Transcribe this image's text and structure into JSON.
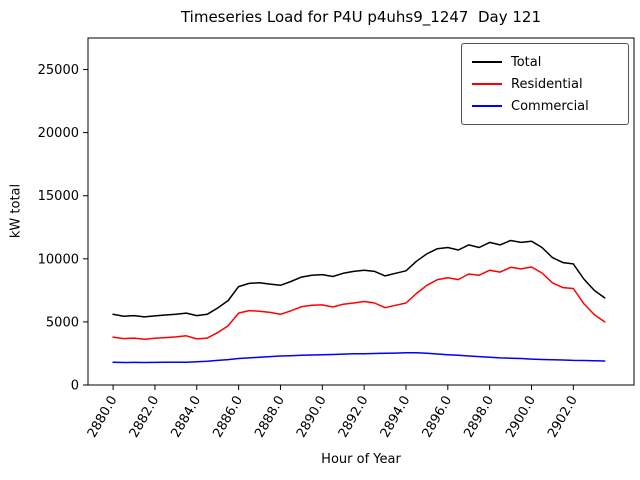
{
  "chart_data": {
    "type": "line",
    "title": "Timeseries Load for P4U p4uhs9_1247  Day 121",
    "xlabel": "Hour of Year",
    "ylabel": "kW total",
    "xlim": [
      2878.8,
      2904.9
    ],
    "ylim": [
      0,
      27500
    ],
    "grid": false,
    "legend_position": "upper right",
    "xticks": {
      "values": [
        2880,
        2882,
        2884,
        2886,
        2888,
        2890,
        2892,
        2894,
        2896,
        2898,
        2900,
        2902
      ],
      "labels": [
        "2880.0",
        "2882.0",
        "2884.0",
        "2886.0",
        "2888.0",
        "2890.0",
        "2892.0",
        "2894.0",
        "2896.0",
        "2898.0",
        "2900.0",
        "2902.0"
      ]
    },
    "yticks": {
      "values": [
        0,
        5000,
        10000,
        15000,
        20000,
        25000
      ],
      "labels": [
        "0",
        "5000",
        "10000",
        "15000",
        "20000",
        "25000"
      ]
    },
    "x": [
      2880,
      2880.5,
      2881,
      2881.5,
      2882,
      2882.5,
      2883,
      2883.5,
      2884,
      2884.5,
      2885,
      2885.5,
      2886,
      2886.5,
      2887,
      2887.5,
      2888,
      2888.5,
      2889,
      2889.5,
      2890,
      2890.5,
      2891,
      2891.5,
      2892,
      2892.5,
      2893,
      2893.5,
      2894,
      2894.5,
      2895,
      2895.5,
      2896,
      2896.5,
      2897,
      2897.5,
      2898,
      2898.5,
      2899,
      2899.5,
      2900,
      2900.5,
      2901,
      2901.5,
      2902,
      2902.5,
      2903,
      2903.5
    ],
    "series": [
      {
        "name": "Total",
        "color": "#000000",
        "values": [
          5600,
          5450,
          5500,
          5400,
          5480,
          5550,
          5600,
          5700,
          5500,
          5600,
          6100,
          6700,
          7800,
          8050,
          8100,
          8000,
          7900,
          8200,
          8550,
          8700,
          8750,
          8600,
          8850,
          9000,
          9100,
          9000,
          8650,
          8850,
          9050,
          9800,
          10400,
          10800,
          10900,
          10700,
          11100,
          10900,
          11300,
          11100,
          11450,
          11300,
          11400,
          10900,
          10100,
          9700,
          9600,
          8400,
          7500,
          6900
        ]
      },
      {
        "name": "Residential",
        "color": "#ff0000",
        "values": [
          3800,
          3680,
          3720,
          3630,
          3700,
          3760,
          3810,
          3900,
          3650,
          3720,
          4150,
          4700,
          5700,
          5900,
          5850,
          5750,
          5600,
          5880,
          6200,
          6320,
          6350,
          6180,
          6400,
          6500,
          6620,
          6500,
          6130,
          6320,
          6500,
          7250,
          7900,
          8350,
          8500,
          8350,
          8800,
          8700,
          9100,
          8950,
          9330,
          9200,
          9350,
          8880,
          8100,
          7720,
          7650,
          6450,
          5580,
          5000
        ]
      },
      {
        "name": "Commercial",
        "color": "#0000ff",
        "values": [
          1800,
          1780,
          1790,
          1780,
          1790,
          1800,
          1800,
          1810,
          1850,
          1890,
          1950,
          2010,
          2100,
          2150,
          2200,
          2250,
          2300,
          2320,
          2350,
          2380,
          2400,
          2420,
          2450,
          2470,
          2480,
          2500,
          2520,
          2530,
          2550,
          2550,
          2510,
          2460,
          2400,
          2350,
          2300,
          2250,
          2200,
          2150,
          2120,
          2100,
          2050,
          2020,
          2000,
          1980,
          1950,
          1940,
          1920,
          1900
        ]
      }
    ]
  }
}
